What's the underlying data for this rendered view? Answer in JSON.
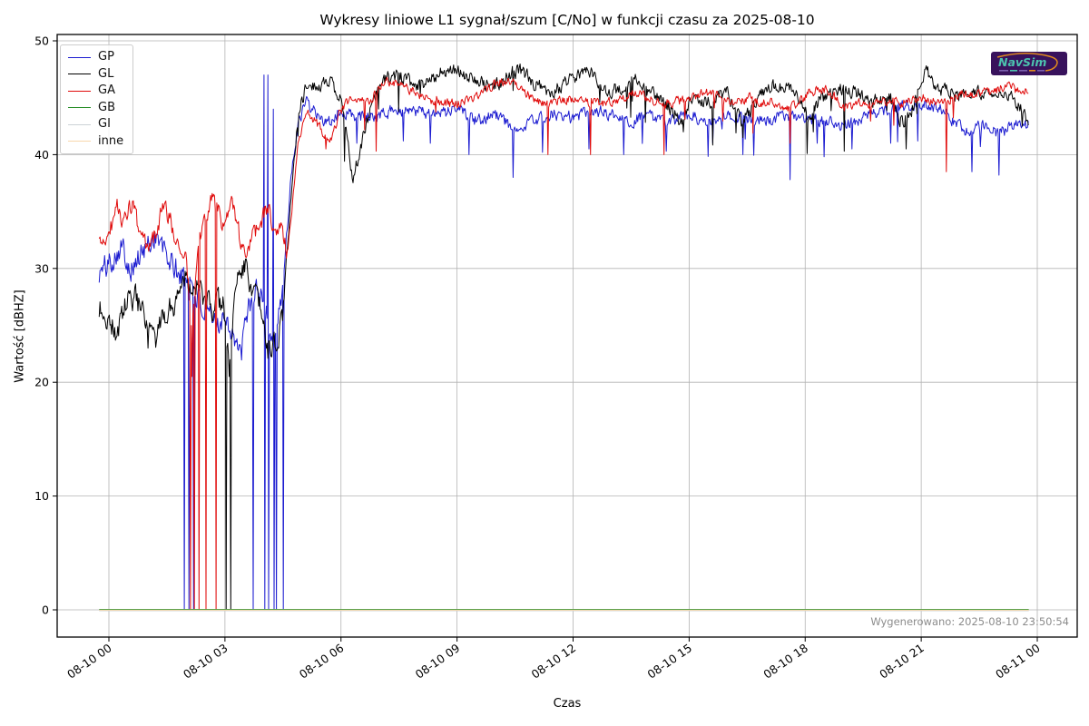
{
  "figure": {
    "title": "Wykresy liniowe L1 sygnał/szum [C/No] w funkcji czasu za 2025-08-10",
    "xlabel": "Czas",
    "ylabel": "Wartość [dBHZ]",
    "generated_note": "Wygenerowano: 2025-08-10 23:50:54",
    "background_color": "#ffffff",
    "grid_color": "#b3b3b3",
    "spine_color": "#000000",
    "note_color": "#8c8c8c"
  },
  "logo": {
    "text": "NavSim",
    "background_color": "#38125c",
    "text_color": "#4cc2ae",
    "swoosh_color": "#e08a1e"
  },
  "chart_data": {
    "type": "line",
    "title": "Wykresy liniowe L1 sygnał/szum [C/No] w funkcji czasu za 2025-08-10",
    "xlabel": "Czas",
    "ylabel": "Wartość [dBHZ]",
    "x_unit": "hours since 2025-08-10 00:00",
    "xlim_hours": [
      -1.34,
      25.03
    ],
    "ylim": [
      -2.4,
      50.6
    ],
    "grid": true,
    "legend_position": "upper-left",
    "x_ticks": [
      {
        "t": 0,
        "label": "08-10 00"
      },
      {
        "t": 3,
        "label": "08-10 03"
      },
      {
        "t": 6,
        "label": "08-10 06"
      },
      {
        "t": 9,
        "label": "08-10 09"
      },
      {
        "t": 12,
        "label": "08-10 12"
      },
      {
        "t": 15,
        "label": "08-10 15"
      },
      {
        "t": 18,
        "label": "08-10 18"
      },
      {
        "t": 21,
        "label": "08-10 21"
      },
      {
        "t": 24,
        "label": "08-11 00"
      }
    ],
    "y_ticks": [
      0,
      10,
      20,
      30,
      40,
      50
    ],
    "t_start": -0.25,
    "t_end": 23.78,
    "series": [
      {
        "name": "GP",
        "color": "#1b1bd0",
        "seed": 101,
        "noise_amp_early": 1.7,
        "noise_amp_late": 0.8,
        "anchors": [
          [
            -0.25,
            29.5
          ],
          [
            0,
            30.5
          ],
          [
            0.3,
            32
          ],
          [
            0.6,
            30
          ],
          [
            0.9,
            31.5
          ],
          [
            1.2,
            33
          ],
          [
            1.5,
            31
          ],
          [
            1.8,
            29.5
          ],
          [
            2.1,
            29
          ],
          [
            2.4,
            26.5
          ],
          [
            2.7,
            25
          ],
          [
            3,
            26
          ],
          [
            3.2,
            24.5
          ],
          [
            3.4,
            22
          ],
          [
            3.6,
            26.5
          ],
          [
            3.8,
            28
          ],
          [
            4,
            27
          ],
          [
            4.2,
            24
          ],
          [
            4.4,
            26
          ],
          [
            4.55,
            30
          ],
          [
            4.7,
            38
          ],
          [
            4.9,
            43
          ],
          [
            5.1,
            44.5
          ],
          [
            5.4,
            43.5
          ],
          [
            5.7,
            42.8
          ],
          [
            6,
            44
          ],
          [
            6.5,
            43.2
          ],
          [
            7,
            43.6
          ],
          [
            7.5,
            44
          ],
          [
            8,
            43.8
          ],
          [
            8.5,
            43.5
          ],
          [
            9,
            44
          ],
          [
            9.5,
            43
          ],
          [
            10,
            43.5
          ],
          [
            10.5,
            42.2
          ],
          [
            11,
            43
          ],
          [
            11.5,
            43.5
          ],
          [
            12,
            43.2
          ],
          [
            12.5,
            44
          ],
          [
            13,
            43.5
          ],
          [
            13.5,
            43
          ],
          [
            14,
            43.4
          ],
          [
            14.5,
            42.8
          ],
          [
            15,
            43.5
          ],
          [
            15.5,
            43
          ],
          [
            16,
            43.4
          ],
          [
            16.5,
            43.2
          ],
          [
            17,
            43
          ],
          [
            17.5,
            43.4
          ],
          [
            18,
            43.2
          ],
          [
            18.5,
            43
          ],
          [
            19,
            42.6
          ],
          [
            19.5,
            43.2
          ],
          [
            20,
            43.8
          ],
          [
            20.5,
            44.3
          ],
          [
            21,
            44.5
          ],
          [
            21.5,
            44
          ],
          [
            22,
            42.5
          ],
          [
            22.3,
            41.8
          ],
          [
            22.6,
            42.8
          ],
          [
            23,
            41.8
          ],
          [
            23.4,
            42.6
          ],
          [
            23.78,
            42.7
          ]
        ],
        "dip_spikes": [
          [
            6.4,
            41
          ],
          [
            7.6,
            41.2
          ],
          [
            8.3,
            41
          ],
          [
            9.3,
            40
          ],
          [
            10.45,
            38
          ],
          [
            11.2,
            40.2
          ],
          [
            12.4,
            40.5
          ],
          [
            13.3,
            40
          ],
          [
            14.4,
            40.3
          ],
          [
            15.6,
            41
          ],
          [
            16.4,
            40
          ],
          [
            17.6,
            37.8
          ],
          [
            18.3,
            41
          ],
          [
            19.2,
            40.5
          ],
          [
            20.2,
            41
          ],
          [
            20.9,
            41.2
          ],
          [
            22.3,
            38.5
          ],
          [
            23,
            38.2
          ]
        ],
        "zero_drops": [
          1.95,
          2.07,
          2.18,
          3.73,
          4.32,
          4.5
        ],
        "tall_spikes": [
          [
            4.01,
            47
          ],
          [
            4.11,
            47
          ],
          [
            4.26,
            44
          ]
        ]
      },
      {
        "name": "GL",
        "color": "#000000",
        "seed": 202,
        "noise_amp_early": 1.7,
        "noise_amp_late": 0.9,
        "anchors": [
          [
            -0.25,
            26.5
          ],
          [
            0,
            25.5
          ],
          [
            0.2,
            24.2
          ],
          [
            0.45,
            27
          ],
          [
            0.7,
            27.5
          ],
          [
            0.95,
            25
          ],
          [
            1.2,
            23.5
          ],
          [
            1.45,
            26
          ],
          [
            1.7,
            27
          ],
          [
            1.95,
            29.5
          ],
          [
            2.2,
            28.5
          ],
          [
            2.45,
            27.5
          ],
          [
            2.7,
            26
          ],
          [
            2.95,
            27.5
          ],
          [
            3.1,
            21.5
          ],
          [
            3.3,
            29
          ],
          [
            3.5,
            30.5
          ],
          [
            3.7,
            28
          ],
          [
            3.9,
            26.5
          ],
          [
            4.1,
            23
          ],
          [
            4.3,
            23
          ],
          [
            4.5,
            26
          ],
          [
            4.7,
            36
          ],
          [
            4.9,
            44
          ],
          [
            5.1,
            45.8
          ],
          [
            5.4,
            46.2
          ],
          [
            5.7,
            46.5
          ],
          [
            6,
            44.8
          ],
          [
            6.3,
            38
          ],
          [
            6.5,
            40.5
          ],
          [
            6.8,
            44.5
          ],
          [
            7.1,
            46.6
          ],
          [
            7.4,
            47
          ],
          [
            7.7,
            46.5
          ],
          [
            8,
            46.2
          ],
          [
            8.3,
            46.6
          ],
          [
            8.6,
            47.2
          ],
          [
            8.9,
            47.6
          ],
          [
            9.2,
            47
          ],
          [
            9.5,
            46.5
          ],
          [
            9.8,
            46
          ],
          [
            10.1,
            46.2
          ],
          [
            10.4,
            47.2
          ],
          [
            10.7,
            47.4
          ],
          [
            11,
            46.3
          ],
          [
            11.3,
            45.6
          ],
          [
            11.6,
            45.8
          ],
          [
            11.9,
            46.6
          ],
          [
            12.2,
            47.2
          ],
          [
            12.45,
            47.5
          ],
          [
            12.7,
            46
          ],
          [
            13,
            45.6
          ],
          [
            13.3,
            46
          ],
          [
            13.6,
            46.5
          ],
          [
            13.9,
            45.6
          ],
          [
            14.2,
            45
          ],
          [
            14.5,
            44.2
          ],
          [
            14.8,
            42.8
          ],
          [
            15.1,
            45
          ],
          [
            15.4,
            44.6
          ],
          [
            15.7,
            45
          ],
          [
            16,
            45.5
          ],
          [
            16.35,
            42.8
          ],
          [
            16.6,
            44
          ],
          [
            16.9,
            45.5
          ],
          [
            17.2,
            46
          ],
          [
            17.5,
            46
          ],
          [
            17.8,
            45.5
          ],
          [
            18.1,
            43.2
          ],
          [
            18.4,
            45
          ],
          [
            18.7,
            45.5
          ],
          [
            19,
            45.9
          ],
          [
            19.3,
            45.5
          ],
          [
            19.6,
            45
          ],
          [
            19.9,
            44.6
          ],
          [
            20.2,
            45
          ],
          [
            20.5,
            42.8
          ],
          [
            20.8,
            44.2
          ],
          [
            21.1,
            47.6
          ],
          [
            21.35,
            46.2
          ],
          [
            21.6,
            45.6
          ],
          [
            21.9,
            45.2
          ],
          [
            22.2,
            45.5
          ],
          [
            22.5,
            45.6
          ],
          [
            22.8,
            45.1
          ],
          [
            23.1,
            45.5
          ],
          [
            23.4,
            45
          ],
          [
            23.78,
            43
          ]
        ],
        "dip_spikes": [
          [
            1.0,
            23
          ],
          [
            3.1,
            20.5
          ],
          [
            14.85,
            42
          ],
          [
            16.4,
            41.5
          ],
          [
            18.2,
            42
          ],
          [
            19.0,
            40.3
          ],
          [
            20.6,
            40.5
          ],
          [
            23.6,
            42.5
          ]
        ],
        "zero_drops": [
          3.02,
          3.14
        ],
        "tall_spikes": []
      },
      {
        "name": "GA",
        "color": "#e00a0a",
        "seed": 303,
        "noise_amp_early": 1.2,
        "noise_amp_late": 0.6,
        "anchors": [
          [
            -0.25,
            32
          ],
          [
            0,
            33
          ],
          [
            0.2,
            35.5
          ],
          [
            0.4,
            34
          ],
          [
            0.6,
            35.8
          ],
          [
            0.8,
            33
          ],
          [
            1,
            31.5
          ],
          [
            1.2,
            33
          ],
          [
            1.4,
            35.5
          ],
          [
            1.6,
            34
          ],
          [
            1.8,
            32
          ],
          [
            2,
            31
          ],
          [
            2.15,
            24
          ],
          [
            2.3,
            32
          ],
          [
            2.5,
            34.5
          ],
          [
            2.65,
            36.3
          ],
          [
            2.85,
            35
          ],
          [
            3,
            33
          ],
          [
            3.15,
            35.8
          ],
          [
            3.3,
            34
          ],
          [
            3.5,
            31
          ],
          [
            3.7,
            32.5
          ],
          [
            3.9,
            34
          ],
          [
            4.1,
            35.5
          ],
          [
            4.3,
            33
          ],
          [
            4.45,
            34.5
          ],
          [
            4.6,
            31
          ],
          [
            4.75,
            36
          ],
          [
            4.9,
            41
          ],
          [
            5.1,
            44
          ],
          [
            5.3,
            43
          ],
          [
            5.55,
            42
          ],
          [
            5.75,
            41.2
          ],
          [
            5.95,
            43.5
          ],
          [
            6.15,
            44.5
          ],
          [
            6.4,
            45
          ],
          [
            6.7,
            44.5
          ],
          [
            7,
            46
          ],
          [
            7.3,
            46.5
          ],
          [
            7.6,
            46
          ],
          [
            7.9,
            45.5
          ],
          [
            8.2,
            45
          ],
          [
            8.5,
            44.6
          ],
          [
            8.8,
            44.5
          ],
          [
            9.1,
            44.6
          ],
          [
            9.4,
            45
          ],
          [
            9.7,
            45.6
          ],
          [
            10,
            46.3
          ],
          [
            10.3,
            46.5
          ],
          [
            10.6,
            46.2
          ],
          [
            10.9,
            45
          ],
          [
            11.2,
            44.5
          ],
          [
            11.5,
            44.6
          ],
          [
            11.8,
            44.8
          ],
          [
            12.1,
            45
          ],
          [
            12.4,
            44.6
          ],
          [
            12.7,
            44.5
          ],
          [
            13,
            44.6
          ],
          [
            13.3,
            45
          ],
          [
            13.6,
            45.5
          ],
          [
            13.9,
            45
          ],
          [
            14.2,
            44.6
          ],
          [
            14.5,
            44.5
          ],
          [
            14.8,
            44.8
          ],
          [
            15.1,
            45
          ],
          [
            15.4,
            45.5
          ],
          [
            15.7,
            45.2
          ],
          [
            16,
            44.6
          ],
          [
            16.3,
            44.8
          ],
          [
            16.6,
            45
          ],
          [
            16.9,
            44.6
          ],
          [
            17.2,
            44.5
          ],
          [
            17.5,
            44
          ],
          [
            17.8,
            44.5
          ],
          [
            18.1,
            45.4
          ],
          [
            18.4,
            45.8
          ],
          [
            18.7,
            45.4
          ],
          [
            19,
            44
          ],
          [
            19.3,
            44.5
          ],
          [
            19.6,
            44.6
          ],
          [
            19.9,
            44.5
          ],
          [
            20.2,
            44.8
          ],
          [
            20.5,
            44.5
          ],
          [
            20.8,
            44.8
          ],
          [
            21.1,
            45
          ],
          [
            21.4,
            44.6
          ],
          [
            21.7,
            44.8
          ],
          [
            22,
            45.4
          ],
          [
            22.3,
            45.2
          ],
          [
            22.6,
            45.5
          ],
          [
            22.9,
            45.5
          ],
          [
            23.2,
            46
          ],
          [
            23.5,
            45.6
          ],
          [
            23.78,
            45.5
          ]
        ],
        "dip_spikes": [
          [
            2.15,
            20.5
          ],
          [
            5.6,
            40.5
          ],
          [
            6.9,
            40.3
          ],
          [
            11.35,
            40
          ],
          [
            12.45,
            40
          ],
          [
            14.35,
            40
          ],
          [
            17.6,
            41
          ],
          [
            21.65,
            38.5
          ]
        ],
        "zero_drops": [
          2.1,
          2.2,
          2.32,
          2.5,
          2.77
        ],
        "tall_spikes": []
      },
      {
        "name": "GB",
        "color": "#228b22",
        "flat_value": 0
      },
      {
        "name": "GI",
        "color": "#ccd2d6",
        "flat_value": 0
      },
      {
        "name": "inne",
        "color": "#f8d8ac",
        "flat_value": 0
      }
    ]
  }
}
